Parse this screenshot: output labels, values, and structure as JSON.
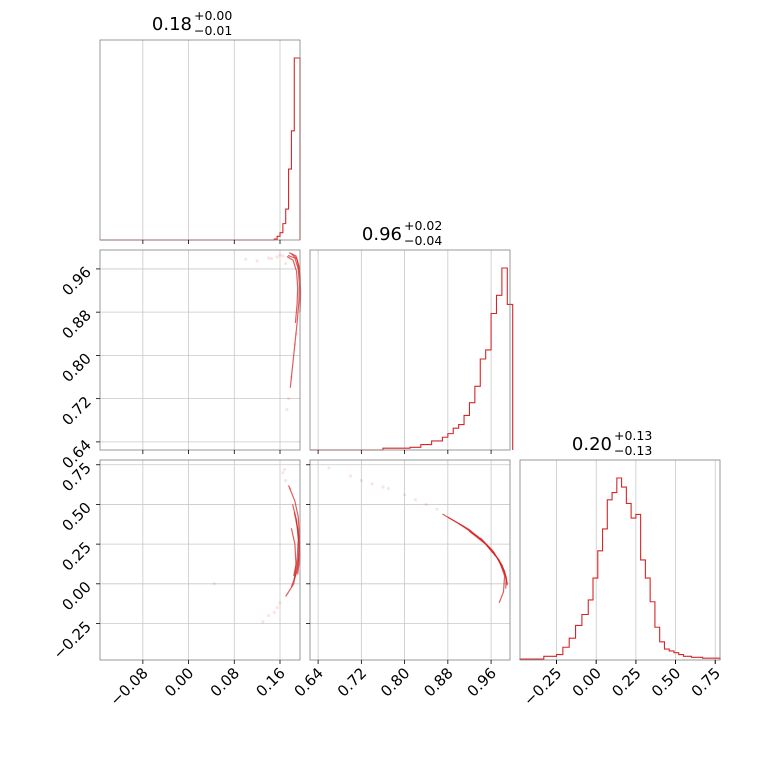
{
  "chart_data": {
    "type": "corner",
    "parameters": [
      {
        "median": "0.18",
        "upper": "+0.00",
        "lower": "−0.01",
        "range": [
          -0.155,
          0.195
        ],
        "ticks": [
          -0.08,
          0.0,
          0.08,
          0.16
        ],
        "tick_labels": [
          "−0.08",
          "0.00",
          "0.08",
          "0.16"
        ],
        "hist": {
          "edges": [
            0.15,
            0.155,
            0.16,
            0.165,
            0.17,
            0.175,
            0.18,
            0.185,
            0.19,
            0.195
          ],
          "counts": [
            0.005,
            0.02,
            0.04,
            0.09,
            0.17,
            0.39,
            0.6,
            1.0,
            1.0
          ]
        }
      },
      {
        "median": "0.96",
        "upper": "+0.02",
        "lower": "−0.04",
        "range": [
          0.625,
          0.995
        ],
        "ticks": [
          0.64,
          0.72,
          0.8,
          0.88,
          0.96
        ],
        "tick_labels": [
          "0.64",
          "0.72",
          "0.80",
          "0.88",
          "0.96"
        ],
        "hist": {
          "edges": [
            0.76,
            0.79,
            0.81,
            0.83,
            0.85,
            0.87,
            0.88,
            0.89,
            0.9,
            0.91,
            0.92,
            0.93,
            0.94,
            0.95,
            0.96,
            0.97,
            0.98,
            0.99,
            1.0
          ],
          "counts": [
            0.01,
            0.01,
            0.015,
            0.03,
            0.05,
            0.07,
            0.09,
            0.12,
            0.14,
            0.19,
            0.26,
            0.35,
            0.5,
            0.55,
            0.75,
            0.85,
            1.0,
            0.8
          ]
        }
      },
      {
        "median": "0.20",
        "upper": "+0.13",
        "lower": "−0.13",
        "range": [
          -0.48,
          0.78
        ],
        "ticks": [
          -0.25,
          0.0,
          0.25,
          0.5,
          0.75
        ],
        "tick_labels": [
          "−0.25",
          "0.00",
          "0.25",
          "0.50",
          "0.75"
        ],
        "hist": {
          "edges": [
            -0.48,
            -0.33,
            -0.25,
            -0.21,
            -0.17,
            -0.13,
            -0.09,
            -0.05,
            -0.02,
            0.01,
            0.04,
            0.07,
            0.1,
            0.13,
            0.16,
            0.19,
            0.22,
            0.25,
            0.28,
            0.31,
            0.34,
            0.37,
            0.4,
            0.43,
            0.46,
            0.49,
            0.52,
            0.55,
            0.6,
            0.67,
            0.78
          ],
          "counts": [
            0.005,
            0.02,
            0.03,
            0.07,
            0.12,
            0.19,
            0.25,
            0.33,
            0.45,
            0.6,
            0.72,
            0.88,
            0.92,
            1.0,
            0.95,
            0.86,
            0.78,
            0.8,
            0.55,
            0.45,
            0.32,
            0.18,
            0.1,
            0.06,
            0.05,
            0.04,
            0.03,
            0.02,
            0.015,
            0.01
          ]
        }
      }
    ],
    "pairs": [
      {
        "x_param": 0,
        "y_param": 1,
        "curves": [
          [
            [
              0.174,
              0.985
            ],
            [
              0.186,
              0.98
            ],
            [
              0.192,
              0.96
            ],
            [
              0.194,
              0.93
            ],
            [
              0.193,
              0.9
            ],
            [
              0.19,
              0.86
            ],
            [
              0.184,
              0.8
            ],
            [
              0.178,
              0.74
            ]
          ],
          [
            [
              0.172,
              0.983
            ],
            [
              0.183,
              0.976
            ],
            [
              0.189,
              0.955
            ],
            [
              0.191,
              0.925
            ],
            [
              0.19,
              0.895
            ],
            [
              0.187,
              0.86
            ]
          ],
          [
            [
              0.18,
              0.988
            ],
            [
              0.19,
              0.978
            ],
            [
              0.195,
              0.95
            ],
            [
              0.196,
              0.915
            ],
            [
              0.195,
              0.88
            ]
          ],
          [
            [
              0.176,
              0.99
            ],
            [
              0.188,
              0.984
            ],
            [
              0.193,
              0.965
            ],
            [
              0.195,
              0.94
            ]
          ]
        ],
        "scatter": [
          [
            0.14,
            0.98
          ],
          [
            0.155,
            0.982
          ],
          [
            0.12,
            0.975
          ],
          [
            0.1,
            0.978
          ],
          [
            0.165,
            0.984
          ],
          [
            0.17,
            0.97
          ],
          [
            0.175,
            0.72
          ],
          [
            0.172,
            0.7
          ],
          [
            0.18,
            0.76
          ],
          [
            0.186,
            0.82
          ],
          [
            0.188,
            0.84
          ],
          [
            0.16,
            0.986
          ],
          [
            0.145,
            0.979
          ]
        ]
      },
      {
        "x_param": 0,
        "y_param": 2,
        "curves": [
          [
            [
              0.175,
              0.62
            ],
            [
              0.186,
              0.52
            ],
            [
              0.192,
              0.42
            ],
            [
              0.194,
              0.3
            ],
            [
              0.192,
              0.15
            ],
            [
              0.184,
              0.0
            ],
            [
              0.17,
              -0.08
            ]
          ],
          [
            [
              0.182,
              0.5
            ],
            [
              0.189,
              0.4
            ],
            [
              0.192,
              0.28
            ],
            [
              0.19,
              0.15
            ],
            [
              0.184,
              0.05
            ]
          ],
          [
            [
              0.185,
              0.45
            ],
            [
              0.191,
              0.35
            ],
            [
              0.194,
              0.2
            ],
            [
              0.19,
              0.08
            ],
            [
              0.18,
              -0.02
            ]
          ],
          [
            [
              0.188,
              0.4
            ],
            [
              0.193,
              0.3
            ],
            [
              0.195,
              0.18
            ],
            [
              0.191,
              0.06
            ]
          ],
          [
            [
              0.18,
              0.35
            ],
            [
              0.186,
              0.25
            ],
            [
              0.188,
              0.12
            ],
            [
              0.185,
              0.03
            ]
          ]
        ],
        "scatter": [
          [
            0.165,
            0.7
          ],
          [
            0.17,
            0.65
          ],
          [
            0.16,
            -0.12
          ],
          [
            0.15,
            -0.18
          ],
          [
            0.13,
            -0.24
          ],
          [
            0.045,
            0.0
          ],
          [
            0.178,
            0.6
          ],
          [
            0.168,
            0.72
          ],
          [
            0.155,
            -0.15
          ],
          [
            0.14,
            -0.2
          ]
        ]
      },
      {
        "x_param": 1,
        "y_param": 2,
        "curves": [
          [
            [
              0.88,
              0.42
            ],
            [
              0.92,
              0.34
            ],
            [
              0.95,
              0.25
            ],
            [
              0.975,
              0.15
            ],
            [
              0.985,
              0.05
            ],
            [
              0.983,
              -0.05
            ],
            [
              0.975,
              -0.12
            ]
          ],
          [
            [
              0.87,
              0.44
            ],
            [
              0.91,
              0.36
            ],
            [
              0.945,
              0.27
            ],
            [
              0.97,
              0.17
            ],
            [
              0.985,
              0.08
            ],
            [
              0.99,
              0.0
            ]
          ],
          [
            [
              0.9,
              0.38
            ],
            [
              0.935,
              0.3
            ],
            [
              0.96,
              0.22
            ],
            [
              0.98,
              0.12
            ],
            [
              0.988,
              0.04
            ],
            [
              0.987,
              -0.03
            ]
          ],
          [
            [
              0.92,
              0.33
            ],
            [
              0.95,
              0.25
            ],
            [
              0.972,
              0.16
            ],
            [
              0.986,
              0.06
            ],
            [
              0.99,
              -0.01
            ]
          ],
          [
            [
              0.94,
              0.29
            ],
            [
              0.965,
              0.2
            ],
            [
              0.982,
              0.1
            ],
            [
              0.989,
              0.02
            ]
          ]
        ],
        "scatter": [
          [
            0.66,
            0.73
          ],
          [
            0.7,
            0.68
          ],
          [
            0.74,
            0.63
          ],
          [
            0.77,
            0.6
          ],
          [
            0.8,
            0.56
          ],
          [
            0.82,
            0.53
          ],
          [
            0.84,
            0.5
          ],
          [
            0.72,
            0.65
          ],
          [
            0.76,
            0.61
          ],
          [
            0.86,
            0.47
          ]
        ]
      }
    ]
  }
}
